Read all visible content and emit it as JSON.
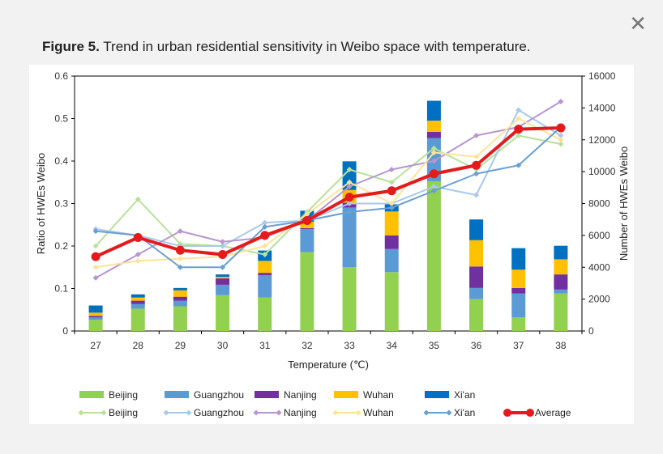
{
  "caption": {
    "label": "Figure 5.",
    "text": " Trend in urban residential sensitivity in Weibo space with temperature."
  },
  "close_symbol": "✕",
  "colors": {
    "bar": {
      "Beijing": "#92d050",
      "Guangzhou": "#5b9bd5",
      "Nanjing": "#7030a0",
      "Wuhan": "#ffc000",
      "Xi'an": "#0070c0"
    },
    "line": {
      "Beijing": "#b7e29a",
      "Guangzhou": "#a9c9ea",
      "Nanjing": "#b796d1",
      "Wuhan": "#fde39a",
      "Xi'an": "#6a9fd0",
      "Average": "#e41a1c"
    }
  },
  "chart_data": {
    "type": "bar",
    "categories": [
      "27",
      "28",
      "29",
      "30",
      "31",
      "32",
      "33",
      "34",
      "35",
      "36",
      "37",
      "38"
    ],
    "xlabel": "Temperature (℃)",
    "ylabel": "Ratio of HWEs Weibo",
    "y2label": "Number of HWEs Weibo",
    "ylim": [
      0,
      0.6
    ],
    "y2lim": [
      0,
      16000
    ],
    "yticks": [
      "0",
      "0.1",
      "0.2",
      "0.3",
      "0.4",
      "0.5",
      "0.6"
    ],
    "y2ticks": [
      "0",
      "2000",
      "4000",
      "6000",
      "8000",
      "10000",
      "12000",
      "14000",
      "16000"
    ],
    "bar_series": [
      {
        "name": "Beijing",
        "values": [
          700,
          1400,
          1550,
          2250,
          2100,
          4950,
          4000,
          3700,
          9400,
          2000,
          850,
          2350
        ]
      },
      {
        "name": "Guangzhou",
        "values": [
          150,
          300,
          350,
          650,
          1400,
          1450,
          3750,
          1450,
          2700,
          700,
          1500,
          250
        ]
      },
      {
        "name": "Nanjing",
        "values": [
          100,
          200,
          250,
          400,
          150,
          50,
          300,
          850,
          400,
          1350,
          350,
          950
        ]
      },
      {
        "name": "Wuhan",
        "values": [
          200,
          200,
          400,
          100,
          750,
          400,
          800,
          1500,
          700,
          1650,
          1150,
          950
        ]
      },
      {
        "name": "Xi'an",
        "values": [
          450,
          200,
          150,
          150,
          650,
          700,
          1800,
          450,
          1250,
          1300,
          1350,
          850
        ]
      }
    ],
    "line_series": [
      {
        "name": "Beijing",
        "values": [
          0.2,
          0.31,
          0.205,
          0.2,
          0.18,
          0.28,
          0.38,
          0.35,
          0.43,
          0.38,
          0.46,
          0.44
        ]
      },
      {
        "name": "Guangzhou",
        "values": [
          0.24,
          0.225,
          0.2,
          0.2,
          0.255,
          0.26,
          0.3,
          0.3,
          0.34,
          0.32,
          0.52,
          0.46
        ]
      },
      {
        "name": "Nanjing",
        "values": [
          0.125,
          0.18,
          0.235,
          0.21,
          0.22,
          0.26,
          0.34,
          0.38,
          0.4,
          0.46,
          0.48,
          0.54
        ]
      },
      {
        "name": "Wuhan",
        "values": [
          0.15,
          0.165,
          0.17,
          0.175,
          0.2,
          0.275,
          0.35,
          0.3,
          0.42,
          0.41,
          0.5,
          0.45
        ]
      },
      {
        "name": "Xi'an",
        "values": [
          0.235,
          0.225,
          0.15,
          0.15,
          0.245,
          0.26,
          0.28,
          0.29,
          0.33,
          0.37,
          0.39,
          0.48
        ]
      },
      {
        "name": "Average",
        "values": [
          0.175,
          0.22,
          0.19,
          0.18,
          0.225,
          0.26,
          0.315,
          0.33,
          0.37,
          0.39,
          0.475,
          0.478
        ]
      }
    ],
    "legend": {
      "bars": [
        "Beijing",
        "Guangzhou",
        "Nanjing",
        "Wuhan",
        "Xi'an"
      ],
      "lines": [
        "Beijing",
        "Guangzhou",
        "Nanjing",
        "Wuhan",
        "Xi'an",
        "Average"
      ],
      "position": "bottom"
    },
    "grid": false
  }
}
